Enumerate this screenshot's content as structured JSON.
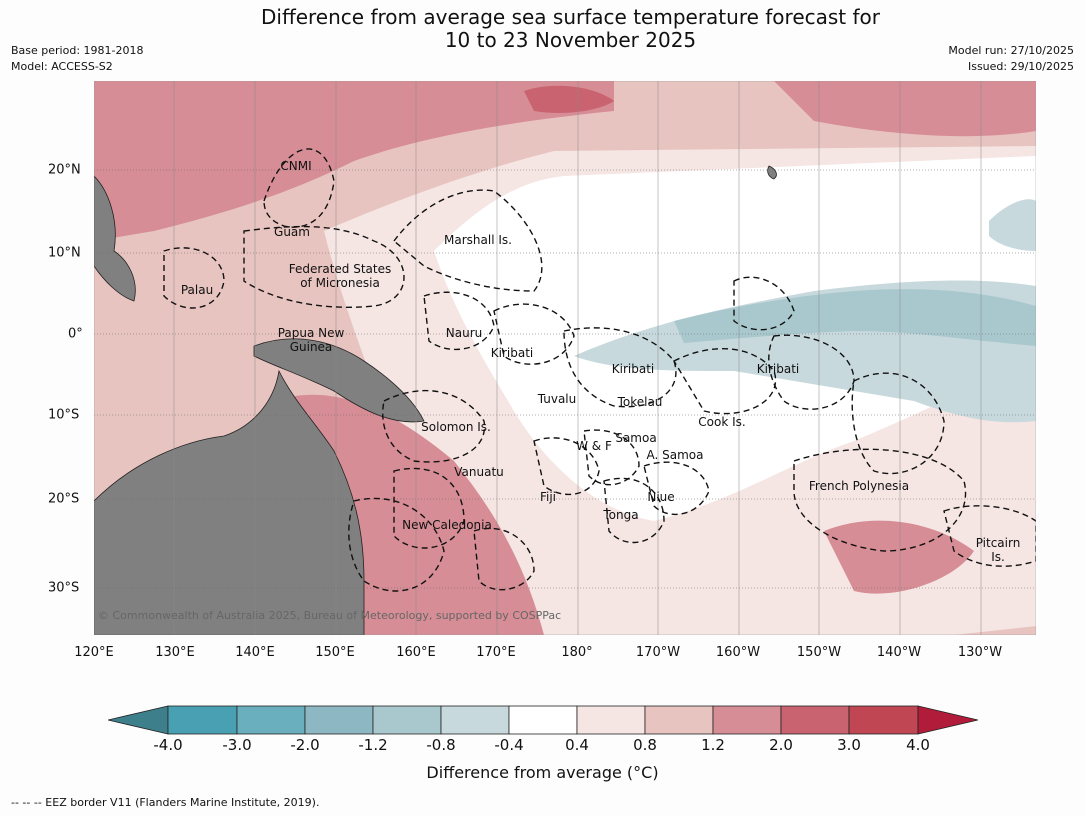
{
  "header": {
    "title_line1": "Difference from average sea surface temperature forecast for",
    "title_line2": "10 to 23 November 2025",
    "base_period": "Base period: 1981-2018",
    "model": "Model: ACCESS-S2",
    "model_run": "Model run: 27/10/2025",
    "issued": "Issued: 29/10/2025"
  },
  "axes": {
    "lon_labels": [
      "120°E",
      "130°E",
      "140°E",
      "150°E",
      "160°E",
      "170°E",
      "180°",
      "170°W",
      "160°W",
      "150°W",
      "140°W",
      "130°W"
    ],
    "lat_labels": [
      "20°N",
      "10°N",
      "0°",
      "10°S",
      "20°S",
      "30°S"
    ]
  },
  "places": {
    "cnmi": "CNMI",
    "guam": "Guam",
    "marshall": "Marshall Is.",
    "fsm1": "Federated States",
    "fsm2": "of Micronesia",
    "palau": "Palau",
    "png1": "Papua New",
    "png2": "Guinea",
    "nauru": "Nauru",
    "kiribati_w": "Kiribati",
    "kiribati_c": "Kiribati",
    "kiribati_e": "Kiribati",
    "tuvalu": "Tuvalu",
    "tokelau": "Tokelau",
    "solomon": "Solomon Is.",
    "wf": "W & F",
    "samoa": "Samoa",
    "asamoa": "A. Samoa",
    "cook": "Cook Is.",
    "vanuatu": "Vanuatu",
    "fiji": "Fiji",
    "niue": "Niue",
    "tonga": "Tonga",
    "newcal": "New Caledonia",
    "frpoly": "French Polynesia",
    "pitcairn1": "Pitcairn",
    "pitcairn2": "Is."
  },
  "copyright": "© Commonwealth of Australia 2025, Bureau of Meteorology, supported by COSPPac",
  "colorbar": {
    "ticks": [
      "-4.0",
      "-3.0",
      "-2.0",
      "-1.2",
      "-0.8",
      "-0.4",
      "0.4",
      "0.8",
      "1.2",
      "2.0",
      "3.0",
      "4.0"
    ],
    "colors": [
      "#3e7f8c",
      "#4aa0b3",
      "#6aafbd",
      "#8db8c3",
      "#a9c8cd",
      "#c8d9de",
      "#ffffff",
      "#f5e6e4",
      "#e8c4c0",
      "#d68d95",
      "#c9636f",
      "#bf4652",
      "#b01c3a"
    ],
    "label": "Difference from average (°C)"
  },
  "footnote": "-- -- -- EEZ border V11 (Flanders Marine Institute, 2019)."
}
